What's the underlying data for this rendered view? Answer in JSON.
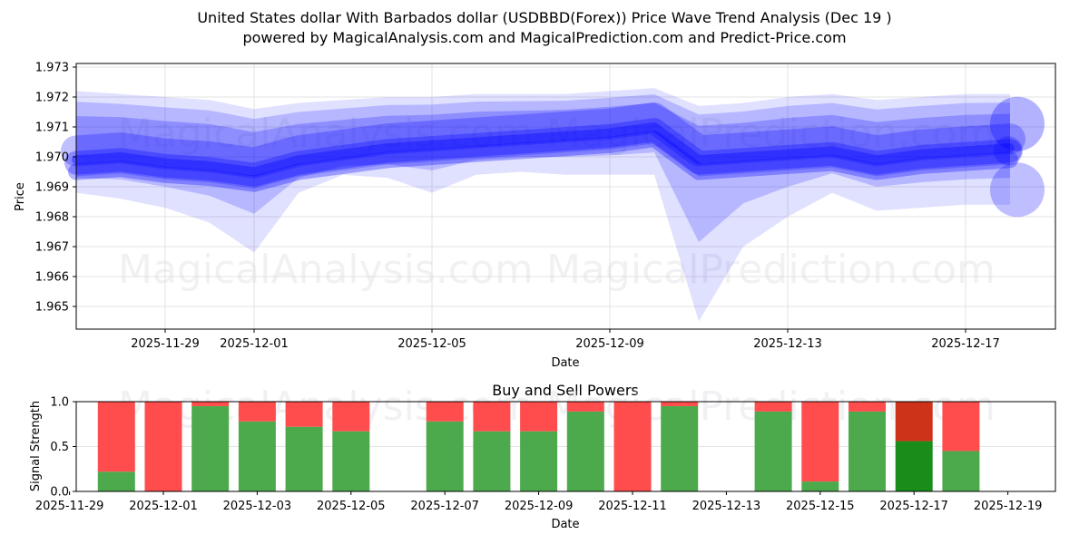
{
  "header": {
    "title": "United States dollar With Barbados dollar (USDBBD(Forex)) Price Wave Trend Analysis (Dec 19 )",
    "subtitle": "powered by MagicalAnalysis.com and MagicalPrediction.com and Predict-Price.com"
  },
  "watermarks": [
    "MagicalAnalysis.com",
    "MagicalPrediction.com"
  ],
  "colors": {
    "wave": "#0000ff",
    "buy": "#4caa4c",
    "sell": "#ff4c4c",
    "buy_strong": "#1a8c1a",
    "sell_strong": "#cc3319"
  },
  "chart_data": [
    {
      "type": "area",
      "title": "",
      "xlabel": "Date",
      "ylabel": "Price",
      "ylim": [
        1.9643,
        1.9732
      ],
      "grid": true,
      "y_ticks": [
        "1.965",
        "1.966",
        "1.967",
        "1.968",
        "1.969",
        "1.970",
        "1.971",
        "1.972",
        "1.973"
      ],
      "x_ticks": [
        "2025-11-29",
        "2025-12-01",
        "2025-12-05",
        "2025-12-09",
        "2025-12-13",
        "2025-12-17"
      ],
      "x": [
        "2025-11-27",
        "2025-11-28",
        "2025-11-29",
        "2025-11-30",
        "2025-12-01",
        "2025-12-02",
        "2025-12-03",
        "2025-12-04",
        "2025-12-05",
        "2025-12-06",
        "2025-12-07",
        "2025-12-08",
        "2025-12-09",
        "2025-12-10",
        "2025-12-11",
        "2025-12-12",
        "2025-12-13",
        "2025-12-14",
        "2025-12-15",
        "2025-12-16",
        "2025-12-17",
        "2025-12-18"
      ],
      "series": [
        {
          "name": "wave-upper-band",
          "values": [
            1.9722,
            1.9721,
            1.972,
            1.9719,
            1.9716,
            1.9718,
            1.9719,
            1.972,
            1.972,
            1.9721,
            1.9721,
            1.9721,
            1.9722,
            1.9723,
            1.9717,
            1.9718,
            1.972,
            1.9721,
            1.9719,
            1.972,
            1.9721,
            1.9721
          ]
        },
        {
          "name": "wave-center",
          "values": [
            1.9698,
            1.9699,
            1.9697,
            1.9696,
            1.9694,
            1.9698,
            1.97,
            1.9702,
            1.9703,
            1.9704,
            1.9705,
            1.9706,
            1.9707,
            1.9709,
            1.9698,
            1.9699,
            1.97,
            1.9701,
            1.9698,
            1.97,
            1.9701,
            1.9702
          ]
        },
        {
          "name": "wave-lower-band",
          "values": [
            1.9688,
            1.9686,
            1.9683,
            1.9678,
            1.9668,
            1.9688,
            1.9694,
            1.9693,
            1.9688,
            1.9694,
            1.9695,
            1.9694,
            1.9694,
            1.9694,
            1.9645,
            1.967,
            1.968,
            1.9688,
            1.9682,
            1.9683,
            1.9684,
            1.9684
          ]
        }
      ]
    },
    {
      "type": "bar",
      "title": "Buy and Sell Powers",
      "xlabel": "Date",
      "ylabel": "Signal Strength",
      "ylim": [
        0.0,
        1.0
      ],
      "grid": true,
      "y_ticks": [
        "0.0",
        "0.5",
        "1.0"
      ],
      "x_ticks": [
        "2025-11-29",
        "2025-12-01",
        "2025-12-03",
        "2025-12-05",
        "2025-12-07",
        "2025-12-09",
        "2025-12-11",
        "2025-12-13",
        "2025-12-15",
        "2025-12-17",
        "2025-12-19"
      ],
      "categories": [
        "2025-11-30",
        "2025-12-01",
        "2025-12-02",
        "2025-12-03",
        "2025-12-04",
        "2025-12-05",
        "2025-12-07",
        "2025-12-08",
        "2025-12-09",
        "2025-12-10",
        "2025-12-11",
        "2025-12-12",
        "2025-12-14",
        "2025-12-15",
        "2025-12-16",
        "2025-12-17",
        "2025-12-18"
      ],
      "series": [
        {
          "name": "Buy",
          "values": [
            0.22,
            0.0,
            0.95,
            0.78,
            0.72,
            0.67,
            0.78,
            0.67,
            0.67,
            0.89,
            0.0,
            0.95,
            0.89,
            0.11,
            0.89,
            0.56,
            0.45
          ]
        },
        {
          "name": "Sell",
          "values": [
            0.78,
            1.0,
            0.05,
            0.22,
            0.28,
            0.33,
            0.22,
            0.33,
            0.33,
            0.11,
            1.0,
            0.05,
            0.11,
            0.89,
            0.11,
            0.44,
            0.55
          ]
        }
      ],
      "highlighted": "2025-12-17"
    }
  ]
}
